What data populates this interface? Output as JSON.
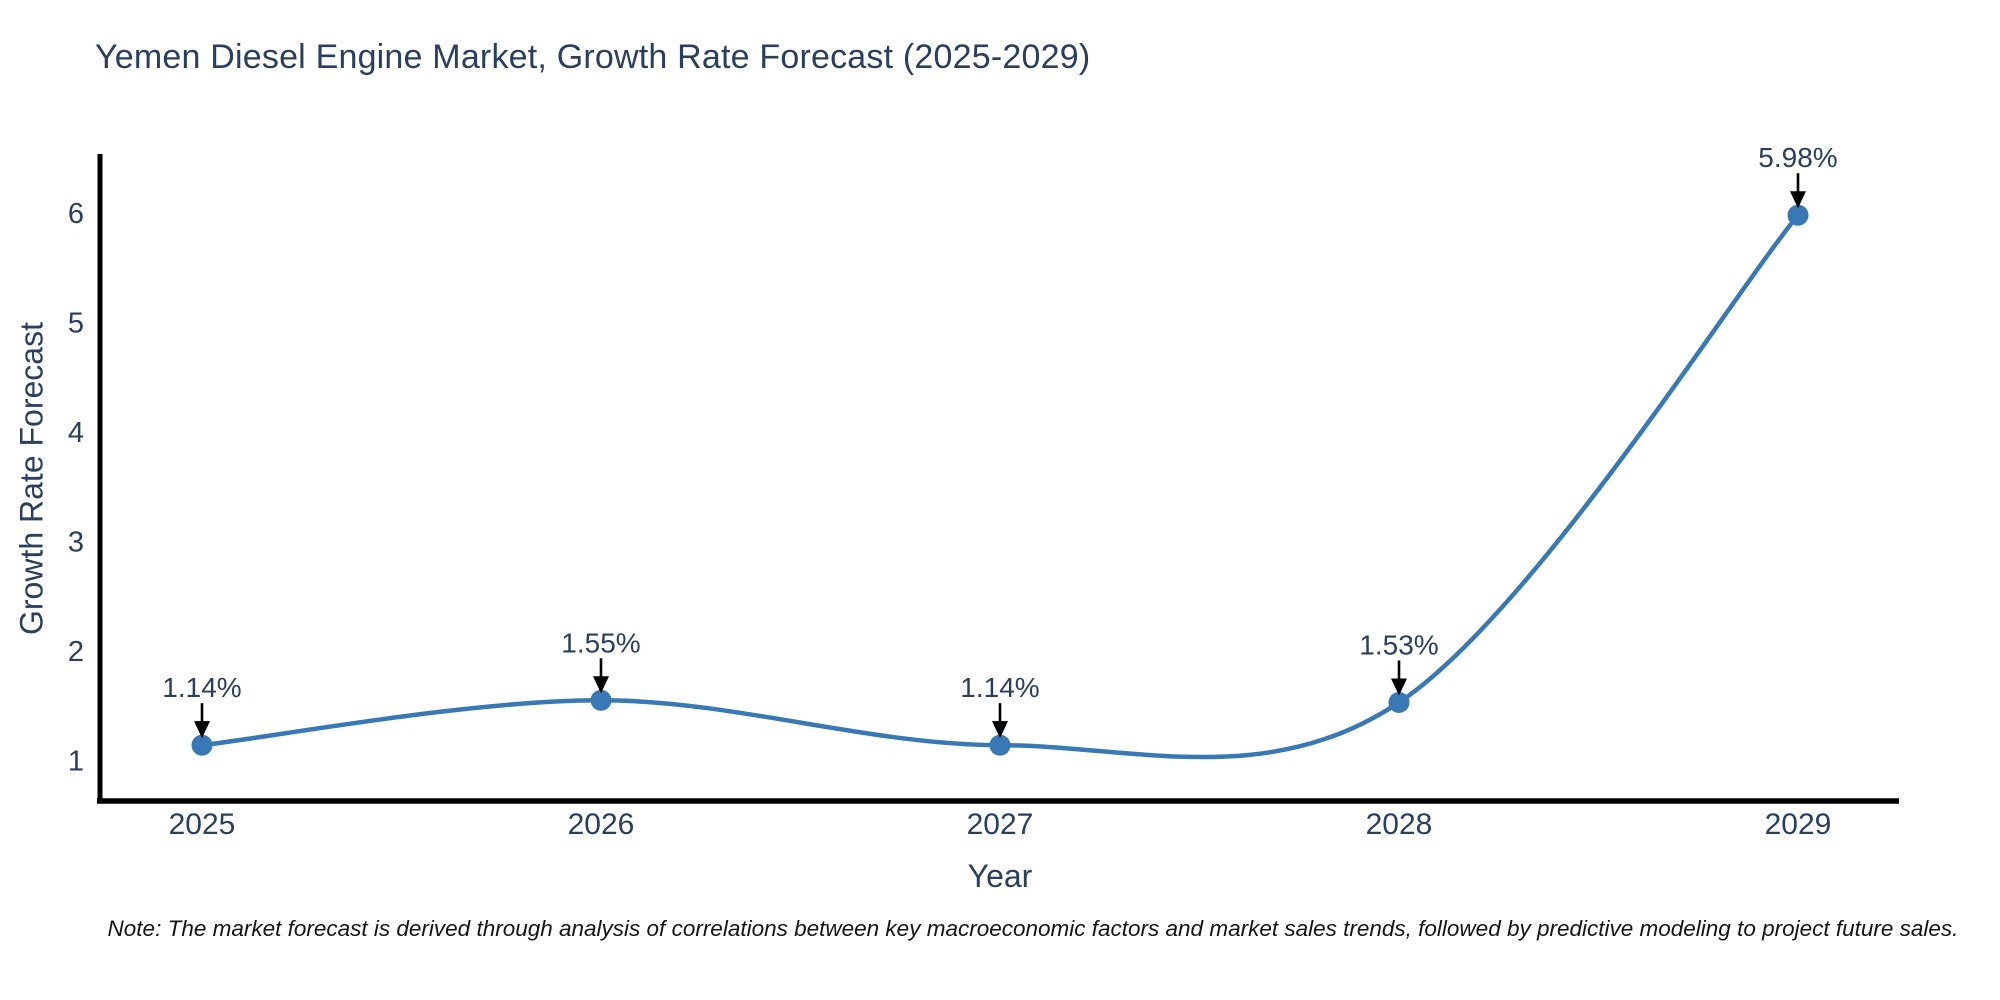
{
  "chart_data": {
    "type": "line",
    "line_shape": "spline",
    "title": "Yemen Diesel Engine Market, Growth Rate Forecast (2025-2029)",
    "xlabel": "Year",
    "ylabel": "Growth Rate Forecast",
    "x": [
      2025,
      2026,
      2027,
      2028,
      2029
    ],
    "x_tick_labels": [
      "2025",
      "2026",
      "2027",
      "2028",
      "2029"
    ],
    "values": [
      1.14,
      1.55,
      1.14,
      1.53,
      5.98
    ],
    "point_labels": [
      "1.14%",
      "1.55%",
      "1.14%",
      "1.53%",
      "5.98%"
    ],
    "y_ticks": [
      1,
      2,
      3,
      4,
      5,
      6
    ],
    "ylim": [
      0.63,
      6.53
    ],
    "grid": false,
    "legend": "none",
    "markers": true,
    "annotation_style": "value label above point with downward black arrow",
    "colors": {
      "line": "#3878b4",
      "marker": "#3878b4",
      "axis": "#000000",
      "text": "#2a3f5f",
      "annotation_text": "#2a3f5f",
      "annotation_arrow": "#000000",
      "note_text": "#141414",
      "background": "#ffffff"
    }
  },
  "footer": {
    "note": "Note: The market forecast is derived through analysis of correlations between key macroeconomic factors and market sales trends, followed by predictive modeling to project future sales."
  }
}
